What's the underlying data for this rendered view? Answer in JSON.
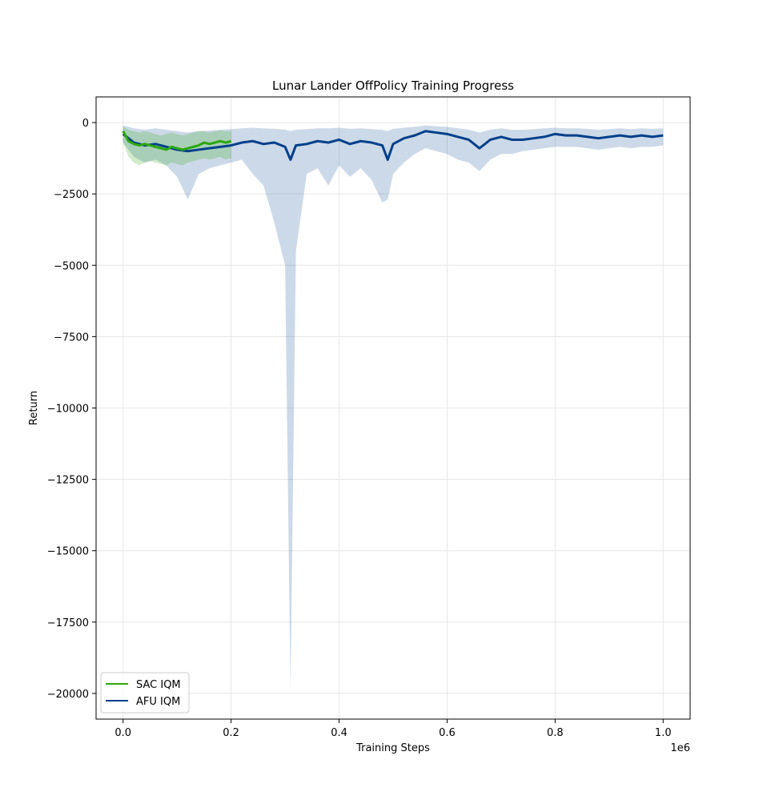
{
  "chart_data": {
    "type": "line",
    "title": "Lunar Lander OffPolicy Training Progress",
    "xlabel": "Training Steps",
    "ylabel": "Return",
    "x_offset_label": "1e6",
    "xlim": [
      -0.05,
      1.05
    ],
    "ylim": [
      -20900,
      900
    ],
    "x_ticks": [
      0.0,
      0.2,
      0.4,
      0.6,
      0.8,
      1.0
    ],
    "x_tick_labels": [
      "0.0",
      "0.2",
      "0.4",
      "0.6",
      "0.8",
      "1.0"
    ],
    "y_ticks": [
      0,
      -2500,
      -5000,
      -7500,
      -10000,
      -12500,
      -15000,
      -17500,
      -20000
    ],
    "y_tick_labels": [
      "0",
      "−2500",
      "−5000",
      "−7500",
      "−10000",
      "−12500",
      "−15000",
      "−17500",
      "−20000"
    ],
    "grid": true,
    "legend_position": "lower-left",
    "series": [
      {
        "name": "SAC IQM",
        "color": "#2ca70f",
        "x": [
          0.0,
          0.01,
          0.02,
          0.03,
          0.04,
          0.05,
          0.06,
          0.07,
          0.08,
          0.09,
          0.1,
          0.11,
          0.12,
          0.13,
          0.14,
          0.15,
          0.16,
          0.17,
          0.18,
          0.19,
          0.2
        ],
        "values": [
          -300,
          -650,
          -750,
          -800,
          -750,
          -800,
          -850,
          -900,
          -950,
          -850,
          -900,
          -950,
          -900,
          -850,
          -800,
          -700,
          -750,
          -700,
          -650,
          -700,
          -650
        ],
        "band_low": [
          -700,
          -1200,
          -1400,
          -1500,
          -1400,
          -1350,
          -1400,
          -1450,
          -1500,
          -1400,
          -1450,
          -1500,
          -1400,
          -1350,
          -1300,
          -1250,
          -1300,
          -1250,
          -1200,
          -1300,
          -1250
        ],
        "band_high": [
          -150,
          -250,
          -300,
          -350,
          -300,
          -350,
          -400,
          -450,
          -400,
          -350,
          -400,
          -450,
          -400,
          -350,
          -300,
          -300,
          -350,
          -300,
          -280,
          -300,
          -300
        ]
      },
      {
        "name": "AFU IQM",
        "color": "#003f8a",
        "x": [
          0.0,
          0.02,
          0.04,
          0.06,
          0.08,
          0.1,
          0.12,
          0.14,
          0.16,
          0.18,
          0.2,
          0.22,
          0.24,
          0.26,
          0.28,
          0.3,
          0.31,
          0.32,
          0.34,
          0.36,
          0.38,
          0.4,
          0.42,
          0.44,
          0.46,
          0.48,
          0.49,
          0.5,
          0.52,
          0.54,
          0.56,
          0.58,
          0.6,
          0.62,
          0.64,
          0.66,
          0.68,
          0.7,
          0.72,
          0.74,
          0.76,
          0.78,
          0.8,
          0.82,
          0.84,
          0.86,
          0.88,
          0.9,
          0.92,
          0.94,
          0.96,
          0.98,
          1.0
        ],
        "values": [
          -400,
          -700,
          -800,
          -750,
          -850,
          -950,
          -1000,
          -950,
          -900,
          -850,
          -800,
          -700,
          -650,
          -750,
          -700,
          -850,
          -1300,
          -800,
          -750,
          -650,
          -700,
          -600,
          -750,
          -650,
          -700,
          -800,
          -1300,
          -750,
          -550,
          -450,
          -300,
          -350,
          -400,
          -500,
          -600,
          -900,
          -600,
          -500,
          -600,
          -600,
          -550,
          -500,
          -400,
          -450,
          -450,
          -500,
          -550,
          -500,
          -450,
          -500,
          -450,
          -500,
          -450
        ],
        "band_low": [
          -700,
          -1200,
          -1400,
          -1300,
          -1500,
          -1900,
          -2700,
          -1800,
          -1600,
          -1500,
          -1400,
          -1300,
          -1800,
          -2200,
          -3500,
          -5000,
          -19900,
          -4500,
          -1800,
          -1600,
          -2200,
          -1500,
          -1900,
          -1600,
          -2000,
          -2800,
          -2700,
          -1800,
          -1400,
          -1100,
          -900,
          -1000,
          -1100,
          -1300,
          -1400,
          -1700,
          -1300,
          -1100,
          -1100,
          -1000,
          -950,
          -900,
          -850,
          -850,
          -850,
          -900,
          -950,
          -900,
          -850,
          -900,
          -850,
          -850,
          -800
        ],
        "band_high": [
          -100,
          -200,
          -250,
          -200,
          -250,
          -300,
          -350,
          -300,
          -280,
          -250,
          -230,
          -200,
          -180,
          -200,
          -220,
          -250,
          -300,
          -250,
          -230,
          -200,
          -200,
          -180,
          -220,
          -200,
          -230,
          -250,
          -300,
          -220,
          -180,
          -150,
          -100,
          -130,
          -150,
          -200,
          -250,
          -350,
          -250,
          -200,
          -250,
          -250,
          -230,
          -200,
          -180,
          -200,
          -200,
          -220,
          -250,
          -230,
          -200,
          -230,
          -200,
          -220,
          -200
        ]
      }
    ]
  }
}
